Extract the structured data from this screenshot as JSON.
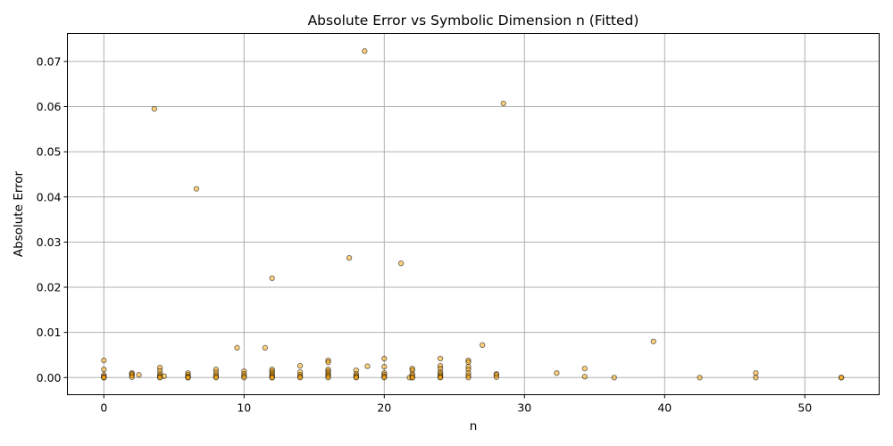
{
  "chart_data": {
    "type": "scatter",
    "title": "Absolute Error vs Symbolic Dimension n (Fitted)",
    "xlabel": "n",
    "ylabel": "Absolute Error",
    "xlim": [
      -2.6,
      55.3
    ],
    "ylim": [
      -0.0038,
      0.0762
    ],
    "xticks": [
      0,
      10,
      20,
      30,
      40,
      50
    ],
    "xtick_labels": [
      "0",
      "10",
      "20",
      "30",
      "40",
      "50"
    ],
    "yticks": [
      0.0,
      0.01,
      0.02,
      0.03,
      0.04,
      0.05,
      0.06,
      0.07
    ],
    "ytick_labels": [
      "0.00",
      "0.01",
      "0.02",
      "0.03",
      "0.04",
      "0.05",
      "0.06",
      "0.07"
    ],
    "grid": true,
    "marker_color": "#ffa500",
    "marker_edge": "#000000",
    "marker_alpha": 0.5,
    "points": [
      {
        "x": 0,
        "y": 0.0038
      },
      {
        "x": 0,
        "y": 0.0018
      },
      {
        "x": 0,
        "y": 0.0006
      },
      {
        "x": 0,
        "y": 0.0002
      },
      {
        "x": 0,
        "y": 0.0
      },
      {
        "x": 0,
        "y": 0.0
      },
      {
        "x": 2,
        "y": 0.001
      },
      {
        "x": 2,
        "y": 0.0008
      },
      {
        "x": 2,
        "y": 0.0005
      },
      {
        "x": 2,
        "y": 0.0001
      },
      {
        "x": 2.5,
        "y": 0.0006
      },
      {
        "x": 3.6,
        "y": 0.0595
      },
      {
        "x": 4,
        "y": 0.0022
      },
      {
        "x": 4,
        "y": 0.0015
      },
      {
        "x": 4,
        "y": 0.0008
      },
      {
        "x": 4,
        "y": 0.0004
      },
      {
        "x": 4,
        "y": 0.0001
      },
      {
        "x": 4,
        "y": 0.0
      },
      {
        "x": 4.3,
        "y": 0.0003
      },
      {
        "x": 6,
        "y": 0.001
      },
      {
        "x": 6,
        "y": 0.0006
      },
      {
        "x": 6,
        "y": 0.0002
      },
      {
        "x": 6,
        "y": 0.0
      },
      {
        "x": 6,
        "y": 0.0
      },
      {
        "x": 6.6,
        "y": 0.0418
      },
      {
        "x": 8,
        "y": 0.0018
      },
      {
        "x": 8,
        "y": 0.0012
      },
      {
        "x": 8,
        "y": 0.0006
      },
      {
        "x": 8,
        "y": 0.0002
      },
      {
        "x": 8,
        "y": 0.0
      },
      {
        "x": 9.5,
        "y": 0.0066
      },
      {
        "x": 10,
        "y": 0.0014
      },
      {
        "x": 10,
        "y": 0.0008
      },
      {
        "x": 10,
        "y": 0.0003
      },
      {
        "x": 10,
        "y": 0.0
      },
      {
        "x": 11.5,
        "y": 0.0066
      },
      {
        "x": 12,
        "y": 0.022
      },
      {
        "x": 12,
        "y": 0.0018
      },
      {
        "x": 12,
        "y": 0.0014
      },
      {
        "x": 12,
        "y": 0.001
      },
      {
        "x": 12,
        "y": 0.0006
      },
      {
        "x": 12,
        "y": 0.0003
      },
      {
        "x": 12,
        "y": 0.0
      },
      {
        "x": 12,
        "y": 0.0
      },
      {
        "x": 14,
        "y": 0.0026
      },
      {
        "x": 14,
        "y": 0.0012
      },
      {
        "x": 14,
        "y": 0.0006
      },
      {
        "x": 14,
        "y": 0.0002
      },
      {
        "x": 14,
        "y": 0.0
      },
      {
        "x": 16,
        "y": 0.0038
      },
      {
        "x": 16,
        "y": 0.0034
      },
      {
        "x": 16,
        "y": 0.0018
      },
      {
        "x": 16,
        "y": 0.0014
      },
      {
        "x": 16,
        "y": 0.001
      },
      {
        "x": 16,
        "y": 0.0006
      },
      {
        "x": 16,
        "y": 0.0003
      },
      {
        "x": 16,
        "y": 0.0
      },
      {
        "x": 17.5,
        "y": 0.0265
      },
      {
        "x": 18,
        "y": 0.0016
      },
      {
        "x": 18,
        "y": 0.0008
      },
      {
        "x": 18,
        "y": 0.0004
      },
      {
        "x": 18,
        "y": 0.0001
      },
      {
        "x": 18,
        "y": 0.0
      },
      {
        "x": 18.6,
        "y": 0.0723
      },
      {
        "x": 18.8,
        "y": 0.0025
      },
      {
        "x": 20,
        "y": 0.0042
      },
      {
        "x": 20,
        "y": 0.0024
      },
      {
        "x": 20,
        "y": 0.001
      },
      {
        "x": 20,
        "y": 0.0006
      },
      {
        "x": 20,
        "y": 0.0002
      },
      {
        "x": 20,
        "y": 0.0
      },
      {
        "x": 21.2,
        "y": 0.0253
      },
      {
        "x": 21.8,
        "y": 0.0
      },
      {
        "x": 22,
        "y": 0.002
      },
      {
        "x": 22,
        "y": 0.0016
      },
      {
        "x": 22,
        "y": 0.0008
      },
      {
        "x": 22,
        "y": 0.0004
      },
      {
        "x": 22,
        "y": 0.0
      },
      {
        "x": 22,
        "y": 0.0
      },
      {
        "x": 24,
        "y": 0.0042
      },
      {
        "x": 24,
        "y": 0.0026
      },
      {
        "x": 24,
        "y": 0.002
      },
      {
        "x": 24,
        "y": 0.0012
      },
      {
        "x": 24,
        "y": 0.0008
      },
      {
        "x": 24,
        "y": 0.0004
      },
      {
        "x": 24,
        "y": 0.0001
      },
      {
        "x": 24,
        "y": 0.0
      },
      {
        "x": 26,
        "y": 0.0038
      },
      {
        "x": 26,
        "y": 0.0034
      },
      {
        "x": 26,
        "y": 0.0024
      },
      {
        "x": 26,
        "y": 0.0018
      },
      {
        "x": 26,
        "y": 0.001
      },
      {
        "x": 26,
        "y": 0.0004
      },
      {
        "x": 26,
        "y": 0.0
      },
      {
        "x": 27,
        "y": 0.0072
      },
      {
        "x": 28,
        "y": 0.0008
      },
      {
        "x": 28,
        "y": 0.0006
      },
      {
        "x": 28,
        "y": 0.0001
      },
      {
        "x": 28.5,
        "y": 0.0607
      },
      {
        "x": 32.3,
        "y": 0.001
      },
      {
        "x": 34.3,
        "y": 0.002
      },
      {
        "x": 34.3,
        "y": 0.0002
      },
      {
        "x": 36.4,
        "y": 0.0
      },
      {
        "x": 39.2,
        "y": 0.008
      },
      {
        "x": 42.5,
        "y": 0.0
      },
      {
        "x": 46.5,
        "y": 0.001
      },
      {
        "x": 46.5,
        "y": 0.0
      },
      {
        "x": 52.6,
        "y": 0.0
      },
      {
        "x": 52.6,
        "y": 0.0
      }
    ]
  }
}
